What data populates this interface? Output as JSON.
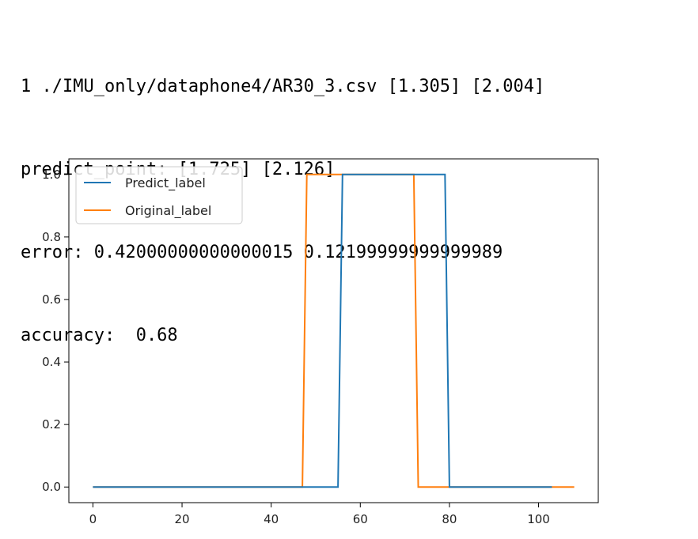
{
  "console": {
    "lines": [
      "1 ./IMU_only/dataphone4/AR30_3.csv [1.305] [2.004]",
      "predict_point: [1.725] [2.126]",
      "error: 0.42000000000000015 0.12199999999999989",
      "accuracy:  0.68"
    ]
  },
  "chart_data": {
    "type": "line",
    "title": "",
    "xlabel": "",
    "ylabel": "",
    "xlim": [
      -5.4,
      113.4
    ],
    "ylim": [
      -0.05,
      1.05
    ],
    "xticks": [
      0,
      20,
      40,
      60,
      80,
      100
    ],
    "yticks": [
      0.0,
      0.2,
      0.4,
      0.6,
      0.8,
      1.0
    ],
    "xtick_labels": [
      "0",
      "20",
      "40",
      "60",
      "80",
      "100"
    ],
    "ytick_labels": [
      "0.0",
      "0.2",
      "0.4",
      "0.6",
      "0.8",
      "1.0"
    ],
    "grid": false,
    "legend_position": "top-left",
    "series": [
      {
        "name": "Predict_label",
        "color": "#1f77b4",
        "x": [
          0,
          55,
          56,
          79,
          80,
          103
        ],
        "y": [
          0,
          0,
          1,
          1,
          0,
          0
        ]
      },
      {
        "name": "Original_label",
        "color": "#ff7f0e",
        "x": [
          0,
          47,
          48,
          72,
          73,
          108
        ],
        "y": [
          0,
          0,
          1,
          1,
          0,
          0
        ]
      }
    ]
  }
}
